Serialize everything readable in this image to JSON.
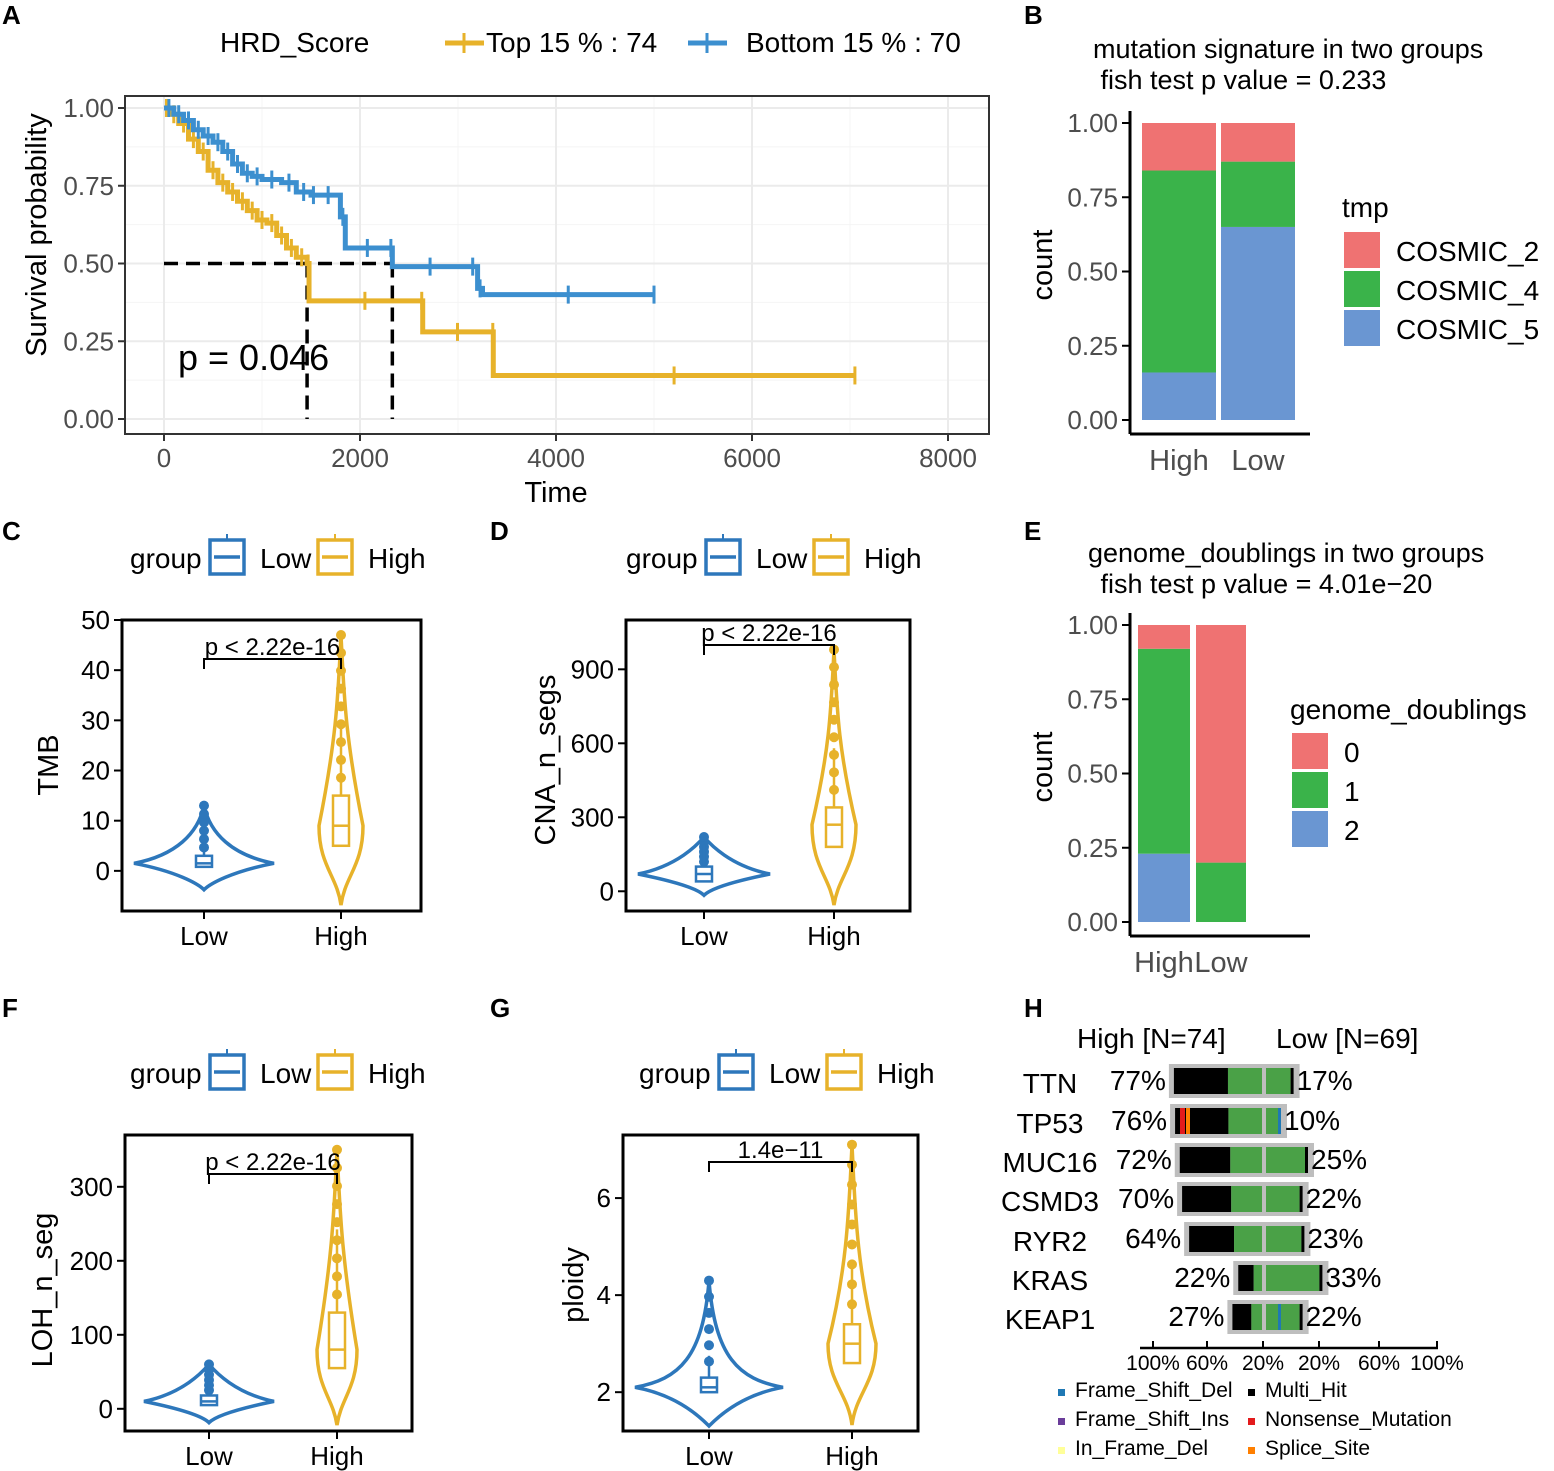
{
  "colors": {
    "top": "#E7B22A",
    "bottom": "#3C8FCF",
    "low": "#2D77BB",
    "high": "#E7B22A",
    "cosmic2": "#EF7272",
    "cosmic4": "#3AB34A",
    "cosmic5": "#6A96D2",
    "g0": "#EF7272",
    "g1": "#3AB34A",
    "g2": "#6A96D2",
    "bar_green": "#4AA147",
    "bar_black": "#000000",
    "bar_gray": "#BEBEBE"
  },
  "panels": {
    "A": {
      "label": "A"
    },
    "B": {
      "label": "B"
    },
    "C": {
      "label": "C"
    },
    "D": {
      "label": "D"
    },
    "E": {
      "label": "E"
    },
    "F": {
      "label": "F"
    },
    "G": {
      "label": "G"
    },
    "H": {
      "label": "H"
    }
  },
  "chart_data": [
    {
      "id": "A",
      "type": "line",
      "subtype": "kaplan-meier",
      "legend_title": "HRD_Score",
      "legend": [
        "Top  15 % :  74",
        "Bottom  15 % :  70"
      ],
      "xlabel": "Time",
      "ylabel": "Survival probability",
      "xlim": [
        0,
        8000
      ],
      "ylim": [
        0,
        1
      ],
      "xticks": [
        "0",
        "2000",
        "4000",
        "6000",
        "8000"
      ],
      "yticks": [
        "0.00",
        "0.25",
        "0.50",
        "0.75",
        "1.00"
      ],
      "annotation": "p = 0.046",
      "median_survival": {
        "top": 1460,
        "bottom": 2330
      },
      "series": [
        {
          "name": "Top",
          "x": [
            0,
            50,
            150,
            250,
            350,
            450,
            550,
            650,
            750,
            850,
            950,
            1050,
            1150,
            1250,
            1350,
            1460,
            1480,
            2620,
            2640,
            3350,
            3360,
            7050
          ],
          "y": [
            1.0,
            0.98,
            0.95,
            0.9,
            0.86,
            0.8,
            0.76,
            0.73,
            0.7,
            0.67,
            0.64,
            0.63,
            0.59,
            0.55,
            0.52,
            0.5,
            0.38,
            0.38,
            0.28,
            0.28,
            0.14,
            0.14
          ]
        },
        {
          "name": "Bottom",
          "x": [
            0,
            100,
            200,
            300,
            400,
            500,
            600,
            700,
            800,
            900,
            1000,
            1200,
            1350,
            1500,
            1550,
            1800,
            1850,
            2300,
            2330,
            3100,
            3200,
            3250,
            5000
          ],
          "y": [
            1.0,
            0.98,
            0.96,
            0.93,
            0.91,
            0.89,
            0.86,
            0.82,
            0.79,
            0.78,
            0.77,
            0.76,
            0.73,
            0.72,
            0.72,
            0.65,
            0.55,
            0.55,
            0.49,
            0.49,
            0.42,
            0.4,
            0.4
          ]
        }
      ]
    },
    {
      "id": "B",
      "type": "bar",
      "stacked": true,
      "title": "mutation signature in two groups",
      "subtitle": " fish test p value = 0.233",
      "ylabel": "count",
      "ylim": [
        0,
        1
      ],
      "yticks": [
        "0.00",
        "0.25",
        "0.50",
        "0.75",
        "1.00"
      ],
      "categories": [
        "High",
        "Low"
      ],
      "legend_title": "tmp",
      "series": [
        {
          "name": "COSMIC_5",
          "values": [
            0.16,
            0.65
          ]
        },
        {
          "name": "COSMIC_4",
          "values": [
            0.68,
            0.22
          ]
        },
        {
          "name": "COSMIC_2",
          "values": [
            0.16,
            0.13
          ]
        }
      ]
    },
    {
      "id": "C",
      "type": "violin",
      "legend_title": "group",
      "legend": [
        "Low",
        "High"
      ],
      "ylabel": "TMB",
      "categories": [
        "Low",
        "High"
      ],
      "ylim": [
        -8,
        50
      ],
      "yticks": [
        "0",
        "10",
        "20",
        "30",
        "40",
        "50"
      ],
      "annotation": "p < 2.22e-16",
      "medians": [
        1.5,
        9
      ],
      "q1": [
        0.8,
        5
      ],
      "q3": [
        3,
        15
      ],
      "max": [
        13,
        47
      ]
    },
    {
      "id": "D",
      "type": "violin",
      "legend_title": "group",
      "legend": [
        "Low",
        "High"
      ],
      "ylabel": "CNA_n_segs",
      "categories": [
        "Low",
        "High"
      ],
      "ylim": [
        -80,
        1100
      ],
      "yticks": [
        "0",
        "300",
        "600",
        "900"
      ],
      "annotation": "p < 2.22e-16",
      "medians": [
        70,
        270
      ],
      "q1": [
        40,
        180
      ],
      "q3": [
        100,
        340
      ],
      "max": [
        220,
        980
      ]
    },
    {
      "id": "E",
      "type": "bar",
      "stacked": true,
      "title": "genome_doublings in two groups",
      "subtitle": " fish test p value = 4.01e−20",
      "ylabel": "count",
      "ylim": [
        0,
        1
      ],
      "yticks": [
        "0.00",
        "0.25",
        "0.50",
        "0.75",
        "1.00"
      ],
      "categories": [
        "High",
        "Low"
      ],
      "legend_title": "genome_doublings",
      "series": [
        {
          "name": "2",
          "values": [
            0.23,
            0.0
          ]
        },
        {
          "name": "1",
          "values": [
            0.69,
            0.2
          ]
        },
        {
          "name": "0",
          "values": [
            0.08,
            0.8
          ]
        }
      ]
    },
    {
      "id": "F",
      "type": "violin",
      "legend_title": "group",
      "legend": [
        "Low",
        "High"
      ],
      "ylabel": "LOH_n_seg",
      "categories": [
        "Low",
        "High"
      ],
      "ylim": [
        -30,
        370
      ],
      "yticks": [
        "0",
        "100",
        "200",
        "300"
      ],
      "annotation": "p < 2.22e-16",
      "medians": [
        10,
        80
      ],
      "q1": [
        5,
        55
      ],
      "q3": [
        18,
        130
      ],
      "max": [
        60,
        350
      ]
    },
    {
      "id": "G",
      "type": "violin",
      "legend_title": "group",
      "legend": [
        "Low",
        "High"
      ],
      "ylabel": "ploidy",
      "categories": [
        "Low",
        "High"
      ],
      "ylim": [
        1.2,
        7.3
      ],
      "yticks": [
        "2",
        "4",
        "6"
      ],
      "annotation": "1.4e−11",
      "medians": [
        2.1,
        3.0
      ],
      "q1": [
        2.0,
        2.6
      ],
      "q3": [
        2.3,
        3.4
      ],
      "max": [
        4.3,
        7.1
      ]
    },
    {
      "id": "H",
      "type": "bar",
      "subtype": "co-bar",
      "header_high": "High [N=74]",
      "header_low": "Low [N=69]",
      "genes": [
        "TTN",
        "TP53",
        "MUC16",
        "CSMD3",
        "RYR2",
        "KRAS",
        "KEAP1"
      ],
      "high_pct": [
        "77%",
        "76%",
        "72%",
        "70%",
        "64%",
        "22%",
        "27%"
      ],
      "low_pct": [
        "17%",
        "10%",
        "25%",
        "22%",
        "23%",
        "33%",
        "22%"
      ],
      "high_values": [
        77,
        76,
        72,
        70,
        64,
        22,
        27
      ],
      "low_values": [
        17,
        10,
        25,
        22,
        23,
        33,
        22
      ],
      "axis_ticks": [
        "100%",
        "60%",
        "20%",
        "20%",
        "60%",
        "100%"
      ],
      "legend": [
        "Frame_Shift_Del",
        "Multi_Hit",
        "Frame_Shift_Ins",
        "Nonsense_Mutation",
        "In_Frame_Del",
        "Splice_Site"
      ],
      "legend_colors": [
        "#1F78B4",
        "#000000",
        "#6A3D9A",
        "#E31A1C",
        "#FFFF99",
        "#FF7F00"
      ]
    }
  ]
}
